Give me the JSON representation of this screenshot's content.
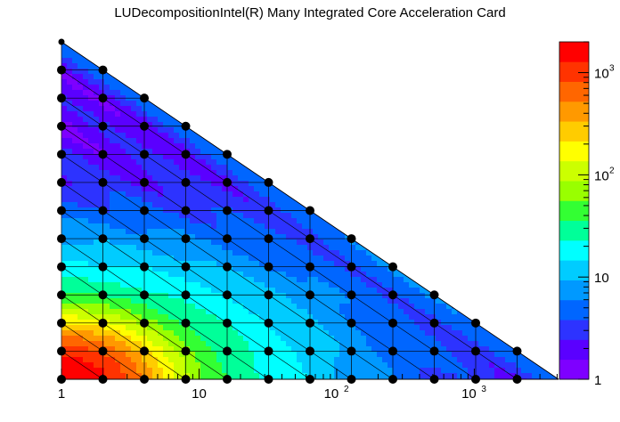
{
  "title": "LUDecompositionIntel(R) Many Integrated Core Acceleration Card",
  "chart_data": {
    "type": "heatmap",
    "title": "LUDecompositionIntel(R) Many Integrated Core Acceleration Card",
    "x_scale": "log",
    "x_range": [
      1,
      4096
    ],
    "y_range": [
      0,
      12
    ],
    "z_scale": "log",
    "z_range": [
      1,
      2000
    ],
    "x_ticks": [
      {
        "value": 1,
        "base": "1",
        "exp": ""
      },
      {
        "value": 10,
        "base": "10",
        "exp": ""
      },
      {
        "value": 100,
        "base": "10",
        "exp": "2"
      },
      {
        "value": 1000,
        "base": "10",
        "exp": "3"
      }
    ],
    "z_ticks": [
      {
        "value": 1,
        "base": "1",
        "exp": ""
      },
      {
        "value": 10,
        "base": "10",
        "exp": ""
      },
      {
        "value": 100,
        "base": "10",
        "exp": "2"
      },
      {
        "value": 1000,
        "base": "10",
        "exp": "3"
      }
    ],
    "grid_points_x": [
      1,
      2,
      4,
      8,
      16,
      32,
      64,
      128,
      256,
      512,
      1024,
      2048,
      4096
    ],
    "palette": [
      "#7e00ff",
      "#5a00ff",
      "#2d33ff",
      "#0066ff",
      "#0099ff",
      "#00ccff",
      "#00ffff",
      "#00ff99",
      "#33ff33",
      "#99ff00",
      "#ccff00",
      "#ffff00",
      "#ffcc00",
      "#ff9900",
      "#ff6600",
      "#ff3300",
      "#ff0000"
    ]
  }
}
